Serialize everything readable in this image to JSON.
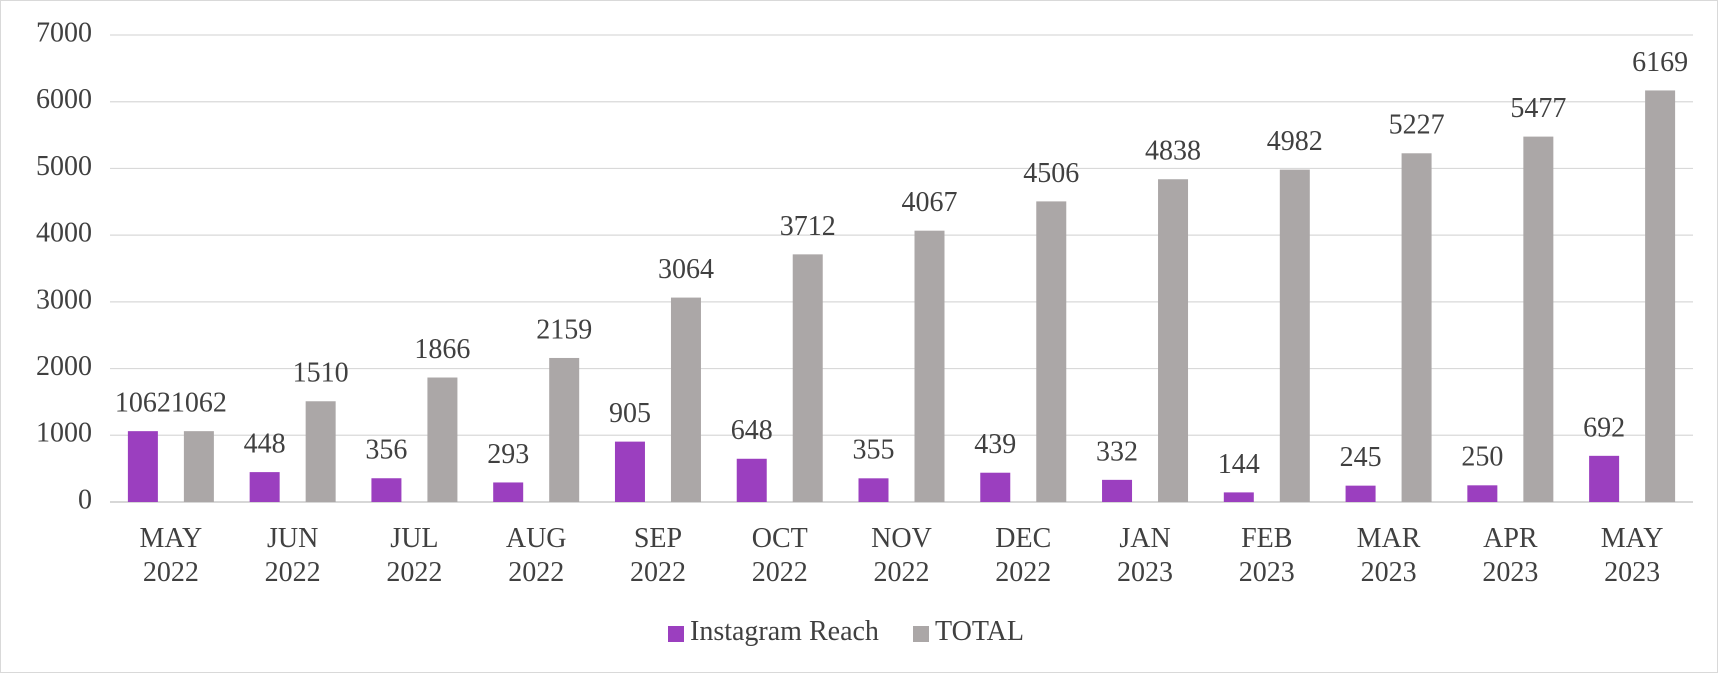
{
  "chart_data": {
    "type": "bar",
    "categories": [
      "MAY 2022",
      "JUN 2022",
      "JUL 2022",
      "AUG 2022",
      "SEP 2022",
      "OCT 2022",
      "NOV 2022",
      "DEC 2022",
      "JAN 2023",
      "FEB 2023",
      "MAR 2023",
      "APR 2023",
      "MAY 2023"
    ],
    "series": [
      {
        "name": "Instagram Reach",
        "color": "#9b3fbf",
        "values": [
          1062,
          448,
          356,
          293,
          905,
          648,
          355,
          439,
          332,
          144,
          245,
          250,
          692
        ]
      },
      {
        "name": "TOTAL",
        "color": "#aba7a7",
        "values": [
          1062,
          1510,
          1866,
          2159,
          3064,
          3712,
          4067,
          4506,
          4838,
          4982,
          5227,
          5477,
          6169
        ]
      }
    ],
    "ylim": [
      0,
      7000
    ],
    "yticks": [
      0,
      1000,
      2000,
      3000,
      4000,
      5000,
      6000,
      7000
    ],
    "grid": true,
    "legend": "bottom"
  }
}
